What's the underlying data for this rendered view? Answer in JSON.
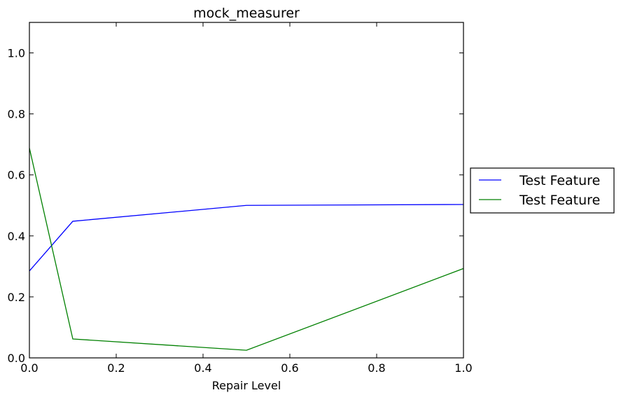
{
  "chart_data": {
    "type": "line",
    "title": "mock_measurer",
    "xlabel": "Repair Level",
    "ylabel": "",
    "xlim": [
      0.0,
      1.0
    ],
    "ylim": [
      0.0,
      1.1
    ],
    "xticks": [
      "0.0",
      "0.2",
      "0.4",
      "0.6",
      "0.8",
      "1.0"
    ],
    "yticks": [
      "0.0",
      "0.2",
      "0.4",
      "0.6",
      "0.8",
      "1.0"
    ],
    "grid": false,
    "legend_position": "outside-right",
    "series": [
      {
        "name": "Test Feature",
        "color": "#0000ff",
        "x": [
          0.0,
          0.1,
          0.5,
          1.0
        ],
        "y": [
          0.285,
          0.448,
          0.5,
          0.503
        ]
      },
      {
        "name": "Test Feature",
        "color": "#008000",
        "x": [
          0.0,
          0.1,
          0.5,
          1.0
        ],
        "y": [
          0.688,
          0.062,
          0.025,
          0.293
        ]
      }
    ]
  }
}
